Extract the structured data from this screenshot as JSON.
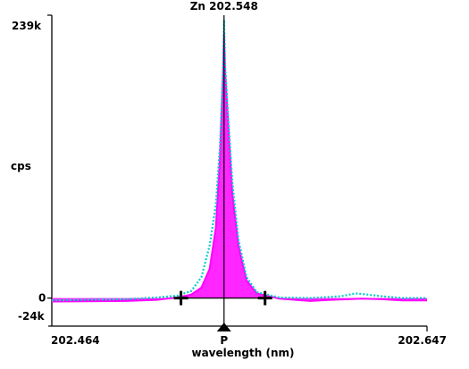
{
  "chart_data": {
    "type": "line",
    "title": "Zn 202.548",
    "xlabel": "wavelength (nm)",
    "ylabel": "cps",
    "xlim": [
      202.464,
      202.647
    ],
    "ylim": [
      -24000,
      239000
    ],
    "x_tick_labels": [
      "202.464",
      "202.647"
    ],
    "y_tick_labels": [
      "239k",
      "0",
      "-24k"
    ],
    "peak_marker_label": "P",
    "peak_wavelength": 202.548,
    "background_points": [
      202.527,
      202.568
    ],
    "grid": false,
    "legend": "none",
    "series": [
      {
        "color": "#ff00ff",
        "style": "solid",
        "x": [
          202.464,
          202.5,
          202.515,
          202.525,
          202.532,
          202.537,
          202.541,
          202.544,
          202.546,
          202.5475,
          202.548,
          202.5485,
          202.55,
          202.552,
          202.555,
          202.559,
          202.564,
          202.575,
          202.59,
          202.6,
          202.615,
          202.625,
          202.635,
          202.647
        ],
        "values": [
          -3000,
          -2500,
          -1500,
          500,
          3000,
          9000,
          25000,
          60000,
          120000,
          190000,
          226000,
          195000,
          150000,
          90000,
          45000,
          15000,
          4000,
          -500,
          -2500,
          -1500,
          -500,
          -1000,
          -2000,
          -2000
        ]
      },
      {
        "color": "#00cccc",
        "style": "dotted",
        "x": [
          202.464,
          202.48,
          202.5,
          202.515,
          202.525,
          202.532,
          202.537,
          202.541,
          202.544,
          202.546,
          202.5475,
          202.548,
          202.5485,
          202.55,
          202.552,
          202.555,
          202.559,
          202.564,
          202.575,
          202.59,
          202.605,
          202.612,
          202.618,
          202.625,
          202.635,
          202.647
        ],
        "values": [
          -2000,
          -1500,
          -1000,
          500,
          2000,
          6000,
          18000,
          45000,
          80000,
          130000,
          195000,
          238000,
          200000,
          155000,
          100000,
          50000,
          18000,
          5000,
          500,
          0,
          1500,
          4000,
          3000,
          1500,
          0,
          0
        ]
      }
    ]
  }
}
